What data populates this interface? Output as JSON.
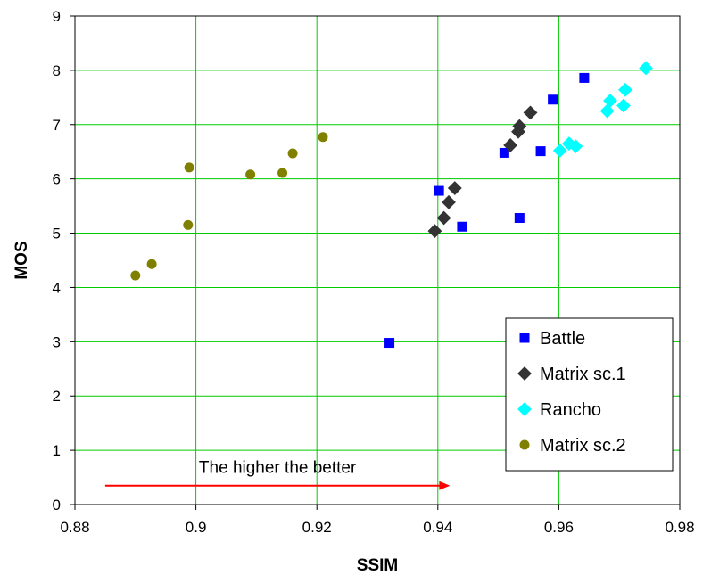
{
  "chart_data": {
    "type": "scatter",
    "title": "",
    "xlabel": "SSIM",
    "ylabel": "MOS",
    "xlim": [
      0.88,
      0.98
    ],
    "ylim": [
      0,
      9
    ],
    "x_ticks": [
      "0.88",
      "0.9",
      "0.92",
      "0.94",
      "0.96",
      "0.98"
    ],
    "y_ticks": [
      "0",
      "1",
      "2",
      "3",
      "4",
      "5",
      "6",
      "7",
      "8",
      "9"
    ],
    "grid": true,
    "legend_position": "bottom-right",
    "series": [
      {
        "name": "Battle",
        "marker": "square",
        "color": "#0000FF",
        "points": [
          [
            0.932,
            2.98
          ],
          [
            0.9402,
            5.78
          ],
          [
            0.944,
            5.12
          ],
          [
            0.951,
            6.48
          ],
          [
            0.9535,
            5.28
          ],
          [
            0.957,
            6.51
          ],
          [
            0.959,
            7.46
          ],
          [
            0.9642,
            7.86
          ]
        ]
      },
      {
        "name": "Matrix sc.1",
        "marker": "diamond",
        "color": "#333333",
        "points": [
          [
            0.9395,
            5.04
          ],
          [
            0.941,
            5.28
          ],
          [
            0.9418,
            5.57
          ],
          [
            0.9428,
            5.83
          ],
          [
            0.952,
            6.62
          ],
          [
            0.9533,
            6.87
          ],
          [
            0.9535,
            6.97
          ],
          [
            0.9553,
            7.22
          ]
        ]
      },
      {
        "name": "Rancho",
        "marker": "diamond",
        "color": "#00FFFF",
        "points": [
          [
            0.9602,
            6.52
          ],
          [
            0.9617,
            6.65
          ],
          [
            0.9628,
            6.6
          ],
          [
            0.968,
            7.25
          ],
          [
            0.9685,
            7.44
          ],
          [
            0.9707,
            7.35
          ],
          [
            0.971,
            7.64
          ],
          [
            0.9744,
            8.04
          ]
        ]
      },
      {
        "name": "Matrix sc.2",
        "marker": "circle",
        "color": "#808000",
        "points": [
          [
            0.89,
            4.22
          ],
          [
            0.8927,
            4.43
          ],
          [
            0.8987,
            5.15
          ],
          [
            0.8989,
            6.21
          ],
          [
            0.909,
            6.08
          ],
          [
            0.9143,
            6.11
          ],
          [
            0.916,
            6.47
          ],
          [
            0.921,
            6.77
          ]
        ]
      }
    ],
    "annotation": {
      "text": "The higher the better",
      "arrow_from_x": 0.885,
      "arrow_to_x": 0.942,
      "arrow_y": 0.35,
      "arrow_color": "#FF0000"
    }
  }
}
